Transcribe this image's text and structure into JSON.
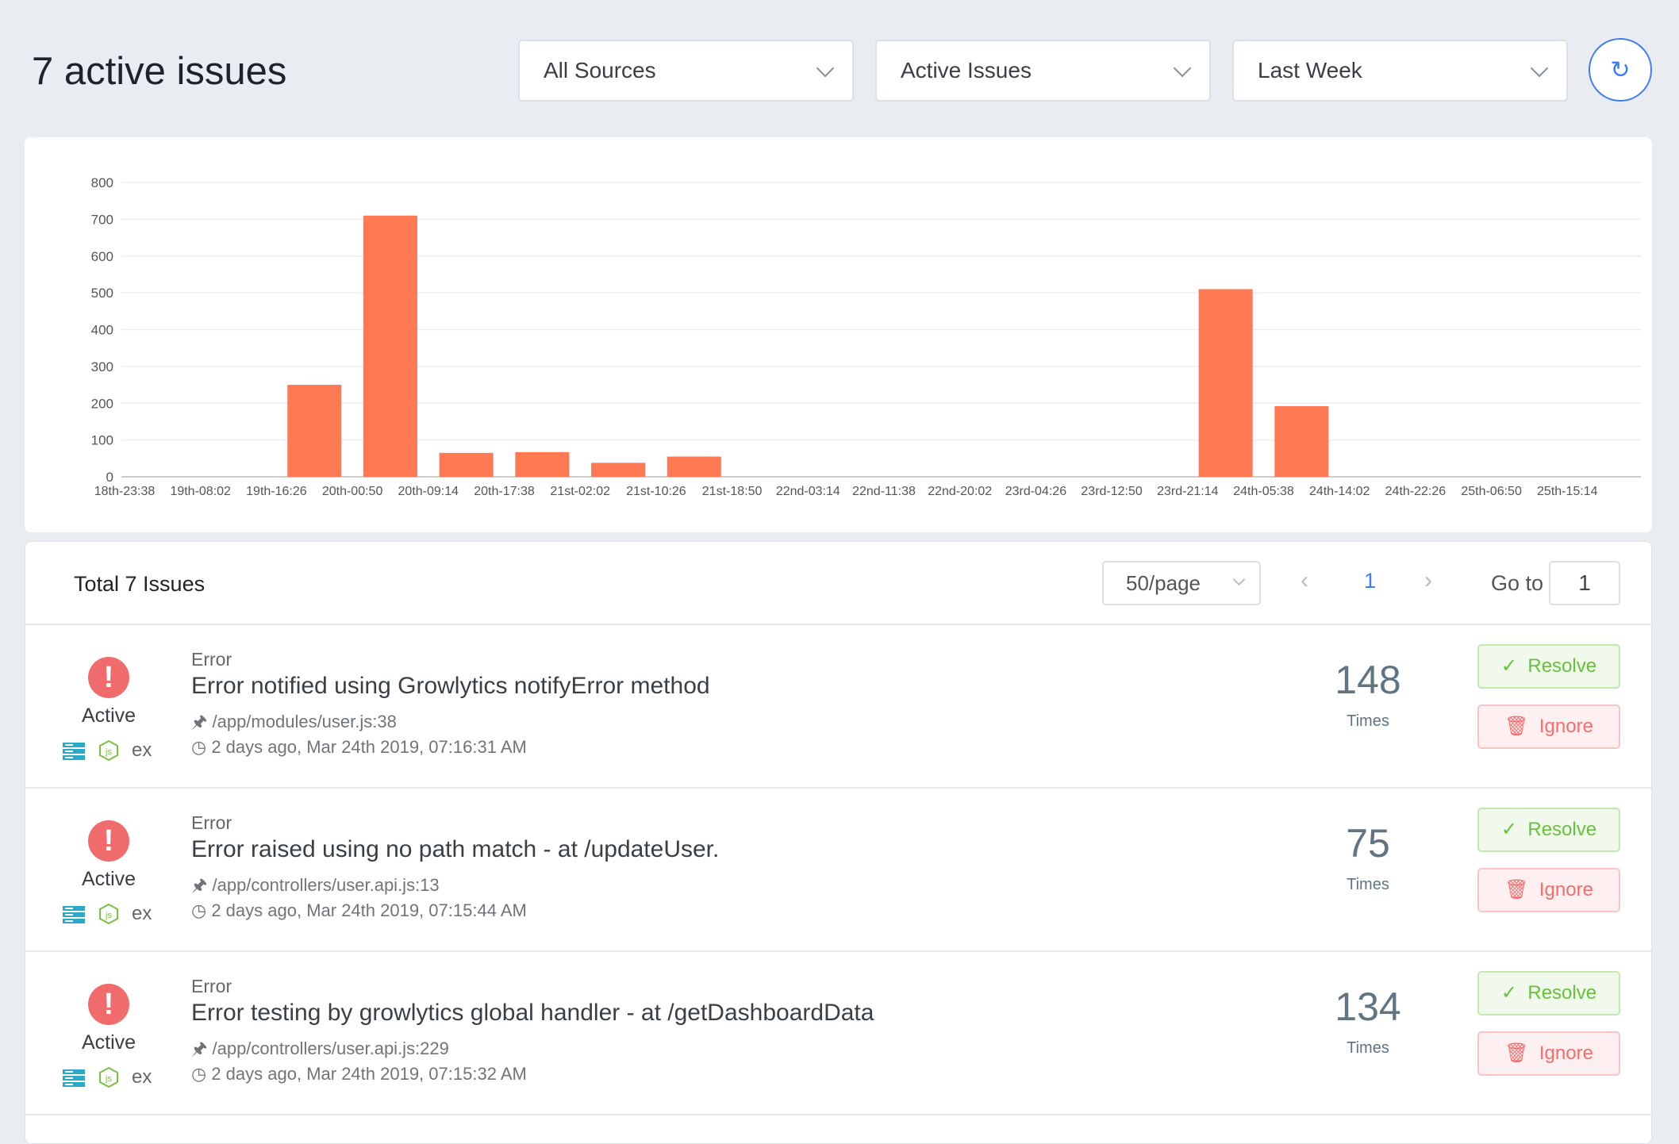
{
  "header": {
    "title": "7 active issues",
    "filters": [
      {
        "value": "All Sources"
      },
      {
        "value": "Active Issues"
      },
      {
        "value": "Last Week"
      }
    ],
    "refresh_icon": "refresh-icon"
  },
  "chart_data": {
    "type": "bar",
    "categories": [
      "18th-23:38",
      "19th-08:02",
      "19th-16:26",
      "20th-00:50",
      "20th-09:14",
      "20th-17:38",
      "21st-02:02",
      "21st-10:26",
      "21st-18:50",
      "22nd-03:14",
      "22nd-11:38",
      "22nd-20:02",
      "23rd-04:26",
      "23rd-12:50",
      "23rd-21:14",
      "24th-05:38",
      "24th-14:02",
      "24th-22:26",
      "25th-06:50",
      "25th-15:14"
    ],
    "values": [
      0,
      0,
      250,
      710,
      65,
      67,
      38,
      55,
      0,
      0,
      0,
      0,
      0,
      0,
      510,
      192,
      0,
      0,
      0,
      0
    ],
    "yticks": [
      0,
      100,
      200,
      300,
      400,
      500,
      600,
      700,
      800
    ],
    "ylim": [
      0,
      800
    ],
    "grid": true,
    "color": "#ff7a53",
    "title": "",
    "xlabel": "",
    "ylabel": ""
  },
  "list": {
    "total_label": "Total 7 Issues",
    "per_page": "50/page",
    "page": "1",
    "goto_label": "Go to",
    "goto_value": "1"
  },
  "issues": [
    {
      "status": "Active",
      "type": "Error",
      "title": "Error notified using Growlytics notifyError method",
      "path": "/app/modules/user.js:38",
      "time": "2 days ago, Mar 24th 2019, 07:16:31 AM",
      "count": "148",
      "count_label": "Times",
      "tech_label": "ex",
      "resolve": "Resolve",
      "ignore": "Ignore"
    },
    {
      "status": "Active",
      "type": "Error",
      "title": "Error raised using no path match - at /updateUser.",
      "path": "/app/controllers/user.api.js:13",
      "time": "2 days ago, Mar 24th 2019, 07:15:44 AM",
      "count": "75",
      "count_label": "Times",
      "tech_label": "ex",
      "resolve": "Resolve",
      "ignore": "Ignore"
    },
    {
      "status": "Active",
      "type": "Error",
      "title": "Error testing by growlytics global handler - at /getDashboardData",
      "path": "/app/controllers/user.api.js:229",
      "time": "2 days ago, Mar 24th 2019, 07:15:32 AM",
      "count": "134",
      "count_label": "Times",
      "tech_label": "ex",
      "resolve": "Resolve",
      "ignore": "Ignore"
    }
  ]
}
